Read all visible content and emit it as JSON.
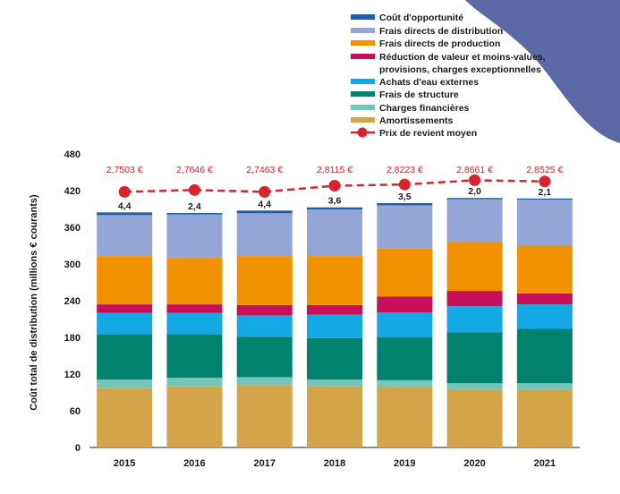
{
  "chart_data": {
    "type": "bar",
    "stacked": true,
    "categories": [
      "2015",
      "2016",
      "2017",
      "2018",
      "2019",
      "2020",
      "2021"
    ],
    "ylabel": "Coût total de distribution (millions € courants)",
    "ylim": [
      0,
      480
    ],
    "yticks": [
      0,
      60,
      120,
      180,
      240,
      300,
      360,
      420,
      480
    ],
    "grid": false,
    "legend_position": "top-right",
    "series": [
      {
        "name": "Amortissements",
        "color": "#d4a548",
        "values": [
          97,
          100,
          102,
          100,
          99,
          95,
          95
        ]
      },
      {
        "name": "Charges financières",
        "color": "#73c6b9",
        "values": [
          14,
          14,
          13,
          11,
          11,
          10,
          10
        ]
      },
      {
        "name": "Frais de structure",
        "color": "#00826f",
        "values": [
          74,
          71,
          66,
          68,
          70,
          83,
          89
        ]
      },
      {
        "name": "Achats d'eau externes",
        "color": "#14a8e4",
        "values": [
          35,
          35,
          35,
          38,
          41,
          43,
          40
        ]
      },
      {
        "name": "Réduction de valeur et moins-values, provisions, charges exceptionnelles",
        "color": "#c8105a",
        "values": [
          14,
          14,
          17,
          16,
          26,
          25,
          18
        ]
      },
      {
        "name": "Frais directs de production",
        "color": "#f39200",
        "values": [
          79,
          76,
          80,
          80,
          79,
          80,
          78
        ]
      },
      {
        "name": "Frais directs de distribution",
        "color": "#93a6d7",
        "values": [
          67,
          71,
          70,
          76,
          70,
          70,
          75
        ]
      },
      {
        "name": "Coût d'opportunité",
        "color": "#1f5fa8",
        "values": [
          4.4,
          2.4,
          4.4,
          3.6,
          3.5,
          2.0,
          2.1
        ]
      }
    ],
    "top_labels": [
      "4,4",
      "2,4",
      "4,4",
      "3,6",
      "3,5",
      "2,0",
      "2,1"
    ],
    "line": {
      "name": "Prix de revient moyen",
      "color": "#d9232e",
      "values": [
        418,
        421,
        418,
        428,
        430,
        437,
        435
      ],
      "labels": [
        "2,7503 €",
        "2,7646 €",
        "2,7463 €",
        "2,8115 €",
        "2,8223 €",
        "2,8661 €",
        "2,8525 €"
      ]
    },
    "legend": [
      "Coût d'opportunité",
      "Frais directs de distribution",
      "Frais directs de production",
      "Réduction de valeur et moins-values,",
      "provisions, charges exceptionnelles",
      "Achats d'eau externes",
      "Frais de structure",
      "Charges financières",
      "Amortissements",
      "Prix de revient moyen"
    ]
  },
  "colors": {
    "corner_shape": "#5b6aa6",
    "axis": "#1a1a1a"
  }
}
